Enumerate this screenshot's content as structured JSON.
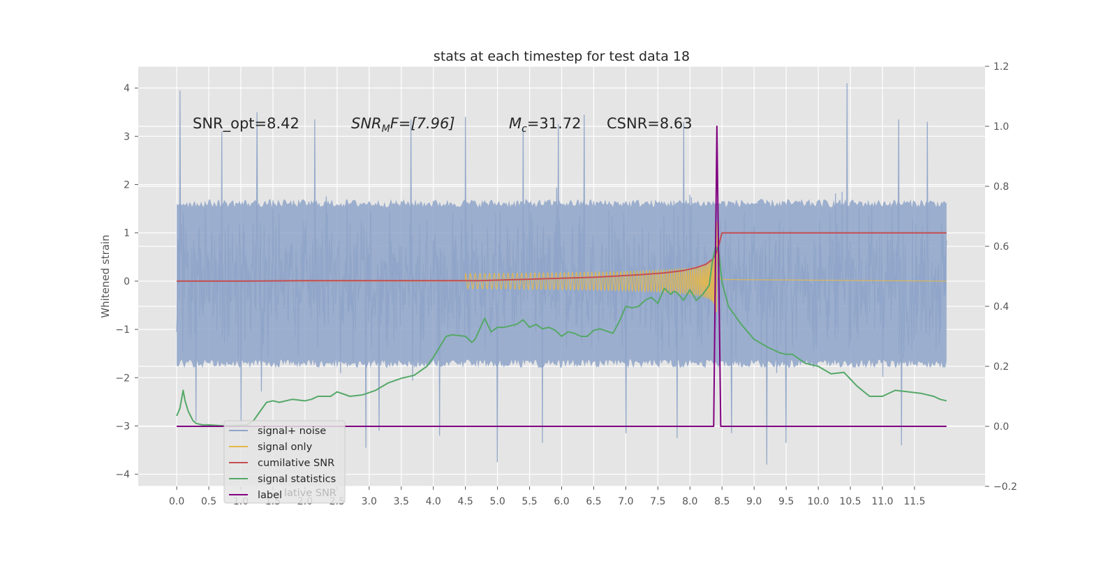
{
  "chart_data": {
    "type": "line",
    "title": "stats at each timestep for test data 18",
    "ylabel": "Whitened strain",
    "y2label": "",
    "xlabel": "",
    "xlim": [
      -0.6,
      12.6
    ],
    "ylim": [
      -4.25,
      4.45
    ],
    "y2lim": [
      -0.2,
      1.2
    ],
    "x_ticks": [
      "0.0",
      "0.5",
      "1.0",
      "1.5",
      "2.0",
      "2.5",
      "3.0",
      "3.5",
      "4.0",
      "4.5",
      "5.0",
      "5.5",
      "6.0",
      "6.5",
      "7.0",
      "7.5",
      "8.0",
      "8.5",
      "9.0",
      "9.5",
      "10.0",
      "10.5",
      "11.0",
      "11.5"
    ],
    "y_ticks": [
      "4",
      "3",
      "2",
      "1",
      "0",
      "−1",
      "−2",
      "−3",
      "−4"
    ],
    "y2_ticks": [
      "1.2",
      "1.0",
      "0.8",
      "0.6",
      "0.4",
      "0.2",
      "0.0",
      "−0.2"
    ],
    "grid": true,
    "legend_position": "lower-left",
    "annotations": {
      "snr_opt": "SNR_opt=8.42",
      "snr_mf_main": "SNR",
      "snr_mf_sub": "M",
      "snr_mf_rest": "F=[7.96]",
      "mc_main": "M",
      "mc_sub": "c",
      "mc_rest": "=31.72",
      "csnr": "CSNR=8.63"
    },
    "legend_residual_text": "lative SNR",
    "colors": {
      "background": "#e5e5e5",
      "grid": "#ffffff",
      "noise": "#8fa5c9",
      "signal": "#e6b84a",
      "cumulative": "#c44e52",
      "statistics": "#55a868",
      "label": "#800080"
    },
    "noise_band": {
      "range": [
        0.0,
        12.0
      ],
      "typical_low": -1.8,
      "typical_high": 1.7,
      "max_spike": 4.1,
      "min_spike": -3.8
    },
    "series": [
      {
        "name": "signal+ noise",
        "axis": "left",
        "color": "#8fa5c9",
        "spikes": [
          [
            0.05,
            3.95
          ],
          [
            0.7,
            3.1
          ],
          [
            1.25,
            3.5
          ],
          [
            2.15,
            3.35
          ],
          [
            3.65,
            3.35
          ],
          [
            4.1,
            3.3
          ],
          [
            4.5,
            3.4
          ],
          [
            5.4,
            3.2
          ],
          [
            5.95,
            3.25
          ],
          [
            6.35,
            3.45
          ],
          [
            7.9,
            3.3
          ],
          [
            10.45,
            4.1
          ],
          [
            11.25,
            3.35
          ],
          [
            11.7,
            3.3
          ],
          [
            0.3,
            -2.9
          ],
          [
            1.0,
            -2.95
          ],
          [
            2.95,
            -3.45
          ],
          [
            3.15,
            -3.1
          ],
          [
            4.1,
            -3.2
          ],
          [
            5.0,
            -3.75
          ],
          [
            5.7,
            -3.35
          ],
          [
            7.0,
            -3.15
          ],
          [
            7.8,
            -3.25
          ],
          [
            8.65,
            -3.15
          ],
          [
            9.2,
            -3.8
          ],
          [
            9.5,
            -3.35
          ],
          [
            11.3,
            -3.4
          ]
        ]
      },
      {
        "name": "signal only",
        "axis": "left",
        "color": "#e6b84a",
        "chirp_start": 4.5,
        "chirp_peak": 8.42,
        "peak_amplitude": 1.6
      },
      {
        "name": "cumilative SNR",
        "axis": "left",
        "color": "#c44e52",
        "x": [
          0.0,
          1.0,
          2.0,
          3.0,
          4.0,
          4.7,
          5.5,
          6.5,
          7.2,
          7.6,
          7.9,
          8.1,
          8.25,
          8.35,
          8.4,
          8.45,
          8.5,
          12.0
        ],
        "y": [
          0.0,
          0.0,
          0.01,
          0.01,
          0.01,
          0.01,
          0.04,
          0.08,
          0.13,
          0.17,
          0.22,
          0.28,
          0.35,
          0.45,
          0.55,
          0.75,
          1.0,
          1.0
        ]
      },
      {
        "name": "signal statistics",
        "axis": "right",
        "color": "#55a868",
        "x": [
          0.0,
          0.05,
          0.1,
          0.13,
          0.18,
          0.25,
          0.3,
          0.4,
          0.5,
          0.7,
          0.9,
          1.1,
          1.2,
          1.3,
          1.4,
          1.5,
          1.6,
          1.8,
          2.0,
          2.1,
          2.2,
          2.4,
          2.5,
          2.7,
          2.9,
          3.1,
          3.3,
          3.5,
          3.7,
          3.9,
          4.0,
          4.1,
          4.2,
          4.3,
          4.5,
          4.6,
          4.65,
          4.8,
          4.9,
          5.0,
          5.1,
          5.2,
          5.3,
          5.4,
          5.5,
          5.6,
          5.7,
          5.8,
          5.9,
          6.0,
          6.1,
          6.2,
          6.3,
          6.4,
          6.5,
          6.6,
          6.8,
          6.9,
          7.0,
          7.1,
          7.2,
          7.3,
          7.4,
          7.5,
          7.6,
          7.7,
          7.75,
          7.8,
          7.9,
          8.0,
          8.1,
          8.2,
          8.3,
          8.35,
          8.4,
          8.45,
          8.5,
          8.6,
          8.8,
          9.0,
          9.2,
          9.4,
          9.5,
          9.6,
          9.8,
          10.0,
          10.2,
          10.4,
          10.6,
          10.8,
          11.0,
          11.2,
          11.4,
          11.6,
          11.8,
          11.9,
          12.0
        ],
        "y": [
          0.035,
          0.06,
          0.12,
          0.085,
          0.05,
          0.02,
          0.01,
          0.005,
          0.005,
          0.002,
          0.003,
          0.005,
          0.02,
          0.05,
          0.08,
          0.085,
          0.08,
          0.09,
          0.085,
          0.09,
          0.1,
          0.1,
          0.115,
          0.1,
          0.105,
          0.12,
          0.145,
          0.16,
          0.17,
          0.2,
          0.23,
          0.265,
          0.3,
          0.305,
          0.3,
          0.28,
          0.29,
          0.36,
          0.315,
          0.33,
          0.33,
          0.335,
          0.34,
          0.355,
          0.33,
          0.34,
          0.325,
          0.33,
          0.32,
          0.3,
          0.315,
          0.31,
          0.3,
          0.3,
          0.32,
          0.325,
          0.31,
          0.35,
          0.4,
          0.395,
          0.4,
          0.42,
          0.43,
          0.41,
          0.46,
          0.44,
          0.45,
          0.445,
          0.42,
          0.455,
          0.42,
          0.44,
          0.47,
          0.55,
          0.6,
          0.58,
          0.48,
          0.4,
          0.34,
          0.29,
          0.265,
          0.245,
          0.24,
          0.24,
          0.21,
          0.2,
          0.175,
          0.18,
          0.135,
          0.1,
          0.1,
          0.12,
          0.115,
          0.11,
          0.1,
          0.09,
          0.085
        ]
      },
      {
        "name": "label",
        "axis": "right",
        "color": "#800080",
        "x": [
          0.0,
          8.37,
          8.42,
          8.48,
          12.0
        ],
        "y": [
          0.0,
          0.0,
          1.0,
          0.0,
          0.0
        ]
      }
    ]
  }
}
